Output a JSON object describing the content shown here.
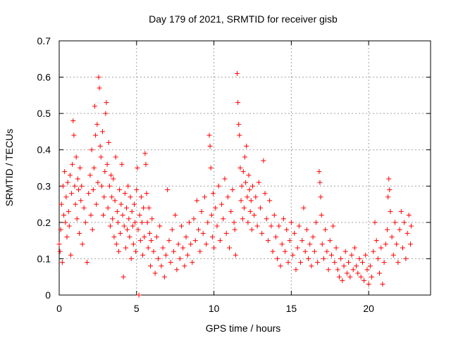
{
  "chart_data": {
    "type": "scatter",
    "title": "Day 179 of 2021, SRMTID for receiver gisb",
    "xlabel": "GPS time / hours",
    "ylabel": "SRMTID / TECUs",
    "xlim": [
      0,
      24
    ],
    "ylim": [
      0,
      0.7
    ],
    "xticks": [
      0,
      5,
      10,
      15,
      20
    ],
    "xtick_labels": [
      "0",
      "5",
      "10",
      "15",
      "20"
    ],
    "yticks": [
      0,
      0.1,
      0.2,
      0.3,
      0.4,
      0.5,
      0.6,
      0.7
    ],
    "ytick_labels": [
      "0",
      "0.1",
      "0.2",
      "0.3",
      "0.4",
      "0.5",
      "0.6",
      "0.7"
    ],
    "grid": true,
    "marker": "+",
    "color": "#ff0000",
    "series": [
      {
        "name": "SRMTID",
        "points": [
          [
            0.0,
            0.14
          ],
          [
            0.05,
            0.12
          ],
          [
            0.1,
            0.18
          ],
          [
            0.15,
            0.25
          ],
          [
            0.2,
            0.09
          ],
          [
            0.25,
            0.3
          ],
          [
            0.3,
            0.22
          ],
          [
            0.35,
            0.34
          ],
          [
            0.4,
            0.2
          ],
          [
            0.45,
            0.27
          ],
          [
            0.5,
            0.16
          ],
          [
            0.55,
            0.31
          ],
          [
            0.6,
            0.23
          ],
          [
            0.65,
            0.19
          ],
          [
            0.7,
            0.33
          ],
          [
            0.75,
            0.11
          ],
          [
            0.8,
            0.28
          ],
          [
            0.85,
            0.36
          ],
          [
            0.9,
            0.48
          ],
          [
            0.95,
            0.44
          ],
          [
            1.0,
            0.3
          ],
          [
            1.05,
            0.25
          ],
          [
            1.1,
            0.38
          ],
          [
            1.15,
            0.21
          ],
          [
            1.2,
            0.32
          ],
          [
            1.25,
            0.29
          ],
          [
            1.3,
            0.17
          ],
          [
            1.35,
            0.35
          ],
          [
            1.4,
            0.26
          ],
          [
            1.45,
            0.3
          ],
          [
            1.5,
            0.14
          ],
          [
            1.6,
            0.24
          ],
          [
            1.7,
            0.2
          ],
          [
            1.8,
            0.09
          ],
          [
            1.9,
            0.28
          ],
          [
            2.0,
            0.33
          ],
          [
            2.05,
            0.22
          ],
          [
            2.1,
            0.4
          ],
          [
            2.15,
            0.18
          ],
          [
            2.2,
            0.29
          ],
          [
            2.25,
            0.35
          ],
          [
            2.3,
            0.52
          ],
          [
            2.35,
            0.44
          ],
          [
            2.4,
            0.25
          ],
          [
            2.45,
            0.47
          ],
          [
            2.5,
            0.31
          ],
          [
            2.55,
            0.6
          ],
          [
            2.6,
            0.57
          ],
          [
            2.65,
            0.41
          ],
          [
            2.7,
            0.38
          ],
          [
            2.75,
            0.3
          ],
          [
            2.8,
            0.45
          ],
          [
            2.85,
            0.22
          ],
          [
            2.9,
            0.27
          ],
          [
            2.95,
            0.34
          ],
          [
            3.0,
            0.5
          ],
          [
            3.05,
            0.53
          ],
          [
            3.1,
            0.36
          ],
          [
            3.15,
            0.24
          ],
          [
            3.2,
            0.42
          ],
          [
            3.25,
            0.3
          ],
          [
            3.3,
            0.19
          ],
          [
            3.35,
            0.33
          ],
          [
            3.4,
            0.27
          ],
          [
            3.45,
            0.21
          ],
          [
            3.5,
            0.32
          ],
          [
            3.55,
            0.16
          ],
          [
            3.6,
            0.26
          ],
          [
            3.65,
            0.38
          ],
          [
            3.7,
            0.14
          ],
          [
            3.75,
            0.23
          ],
          [
            3.8,
            0.2
          ],
          [
            3.85,
            0.12
          ],
          [
            3.9,
            0.29
          ],
          [
            3.95,
            0.17
          ],
          [
            4.0,
            0.25
          ],
          [
            4.05,
            0.36
          ],
          [
            4.1,
            0.22
          ],
          [
            4.15,
            0.05
          ],
          [
            4.2,
            0.19
          ],
          [
            4.25,
            0.28
          ],
          [
            4.3,
            0.13
          ],
          [
            4.35,
            0.24
          ],
          [
            4.4,
            0.18
          ],
          [
            4.45,
            0.3
          ],
          [
            4.5,
            0.21
          ],
          [
            4.55,
            0.16
          ],
          [
            4.6,
            0.27
          ],
          [
            4.65,
            0.1
          ],
          [
            4.7,
            0.23
          ],
          [
            4.75,
            0.19
          ],
          [
            4.8,
            0.14
          ],
          [
            4.85,
            0.25
          ],
          [
            4.9,
            0.2
          ],
          [
            4.95,
            0.12
          ],
          [
            5.0,
            0.29
          ],
          [
            5.05,
            0.35
          ],
          [
            5.1,
            0.18
          ],
          [
            5.15,
            0.0
          ],
          [
            5.2,
            0.22
          ],
          [
            5.25,
            0.15
          ],
          [
            5.3,
            0.27
          ],
          [
            5.35,
            0.2
          ],
          [
            5.4,
            0.11
          ],
          [
            5.45,
            0.24
          ],
          [
            5.5,
            0.16
          ],
          [
            5.55,
            0.39
          ],
          [
            5.6,
            0.36
          ],
          [
            5.65,
            0.28
          ],
          [
            5.7,
            0.2
          ],
          [
            5.75,
            0.13
          ],
          [
            5.8,
            0.24
          ],
          [
            5.85,
            0.17
          ],
          [
            5.9,
            0.08
          ],
          [
            5.95,
            0.15
          ],
          [
            6.0,
            0.21
          ],
          [
            6.1,
            0.12
          ],
          [
            6.2,
            0.06
          ],
          [
            6.3,
            0.16
          ],
          [
            6.4,
            0.1
          ],
          [
            6.5,
            0.19
          ],
          [
            6.6,
            0.08
          ],
          [
            6.7,
            0.13
          ],
          [
            6.8,
            0.05
          ],
          [
            6.9,
            0.11
          ],
          [
            7.0,
            0.29
          ],
          [
            7.1,
            0.15
          ],
          [
            7.2,
            0.09
          ],
          [
            7.3,
            0.18
          ],
          [
            7.4,
            0.12
          ],
          [
            7.5,
            0.22
          ],
          [
            7.6,
            0.07
          ],
          [
            7.7,
            0.14
          ],
          [
            7.8,
            0.1
          ],
          [
            7.9,
            0.19
          ],
          [
            8.0,
            0.13
          ],
          [
            8.1,
            0.08
          ],
          [
            8.2,
            0.16
          ],
          [
            8.3,
            0.11
          ],
          [
            8.4,
            0.2
          ],
          [
            8.5,
            0.14
          ],
          [
            8.6,
            0.09
          ],
          [
            8.7,
            0.21
          ],
          [
            8.8,
            0.15
          ],
          [
            8.9,
            0.26
          ],
          [
            9.0,
            0.18
          ],
          [
            9.1,
            0.12
          ],
          [
            9.2,
            0.23
          ],
          [
            9.3,
            0.17
          ],
          [
            9.4,
            0.27
          ],
          [
            9.5,
            0.14
          ],
          [
            9.6,
            0.2
          ],
          [
            9.7,
            0.44
          ],
          [
            9.75,
            0.41
          ],
          [
            9.8,
            0.35
          ],
          [
            9.85,
            0.22
          ],
          [
            9.9,
            0.16
          ],
          [
            9.95,
            0.28
          ],
          [
            10.0,
            0.13
          ],
          [
            10.1,
            0.24
          ],
          [
            10.2,
            0.19
          ],
          [
            10.3,
            0.3
          ],
          [
            10.4,
            0.15
          ],
          [
            10.5,
            0.25
          ],
          [
            10.6,
            0.21
          ],
          [
            10.7,
            0.32
          ],
          [
            10.8,
            0.17
          ],
          [
            10.9,
            0.27
          ],
          [
            11.0,
            0.13
          ],
          [
            11.1,
            0.23
          ],
          [
            11.2,
            0.29
          ],
          [
            11.3,
            0.2
          ],
          [
            11.35,
            0.18
          ],
          [
            11.4,
            0.11
          ],
          [
            11.5,
            0.61
          ],
          [
            11.55,
            0.53
          ],
          [
            11.6,
            0.47
          ],
          [
            11.65,
            0.44
          ],
          [
            11.7,
            0.35
          ],
          [
            11.75,
            0.26
          ],
          [
            11.8,
            0.3
          ],
          [
            11.85,
            0.21
          ],
          [
            11.9,
            0.34
          ],
          [
            11.95,
            0.24
          ],
          [
            12.0,
            0.38
          ],
          [
            12.05,
            0.31
          ],
          [
            12.1,
            0.41
          ],
          [
            12.15,
            0.27
          ],
          [
            12.2,
            0.2
          ],
          [
            12.25,
            0.33
          ],
          [
            12.3,
            0.29
          ],
          [
            12.35,
            0.23
          ],
          [
            12.4,
            0.26
          ],
          [
            12.45,
            0.18
          ],
          [
            12.5,
            0.3
          ],
          [
            12.6,
            0.22
          ],
          [
            12.7,
            0.27
          ],
          [
            12.8,
            0.19
          ],
          [
            12.9,
            0.31
          ],
          [
            13.0,
            0.24
          ],
          [
            13.1,
            0.17
          ],
          [
            13.2,
            0.37
          ],
          [
            13.3,
            0.28
          ],
          [
            13.4,
            0.21
          ],
          [
            13.5,
            0.15
          ],
          [
            13.6,
            0.26
          ],
          [
            13.7,
            0.19
          ],
          [
            13.8,
            0.12
          ],
          [
            13.9,
            0.22
          ],
          [
            14.0,
            0.16
          ],
          [
            14.1,
            0.1
          ],
          [
            14.2,
            0.19
          ],
          [
            14.3,
            0.08
          ],
          [
            14.4,
            0.14
          ],
          [
            14.5,
            0.21
          ],
          [
            14.6,
            0.12
          ],
          [
            14.7,
            0.18
          ],
          [
            14.8,
            0.09
          ],
          [
            14.9,
            0.15
          ],
          [
            15.0,
            0.2
          ],
          [
            15.1,
            0.11
          ],
          [
            15.2,
            0.17
          ],
          [
            15.3,
            0.07
          ],
          [
            15.4,
            0.13
          ],
          [
            15.5,
            0.19
          ],
          [
            15.6,
            0.09
          ],
          [
            15.7,
            0.15
          ],
          [
            15.8,
            0.24
          ],
          [
            15.9,
            0.12
          ],
          [
            16.0,
            0.18
          ],
          [
            16.1,
            0.1
          ],
          [
            16.2,
            0.14
          ],
          [
            16.3,
            0.08
          ],
          [
            16.4,
            0.16
          ],
          [
            16.5,
            0.12
          ],
          [
            16.6,
            0.2
          ],
          [
            16.7,
            0.09
          ],
          [
            16.8,
            0.34
          ],
          [
            16.85,
            0.31
          ],
          [
            16.9,
            0.27
          ],
          [
            16.95,
            0.22
          ],
          [
            17.0,
            0.14
          ],
          [
            17.1,
            0.1
          ],
          [
            17.2,
            0.18
          ],
          [
            17.3,
            0.12
          ],
          [
            17.4,
            0.07
          ],
          [
            17.5,
            0.15
          ],
          [
            17.6,
            0.11
          ],
          [
            17.7,
            0.19
          ],
          [
            17.8,
            0.09
          ],
          [
            17.9,
            0.13
          ],
          [
            18.0,
            0.07
          ],
          [
            18.1,
            0.05
          ],
          [
            18.2,
            0.1
          ],
          [
            18.3,
            0.04
          ],
          [
            18.4,
            0.08
          ],
          [
            18.5,
            0.12
          ],
          [
            18.6,
            0.06
          ],
          [
            18.7,
            0.09
          ],
          [
            18.8,
            0.05
          ],
          [
            18.9,
            0.11
          ],
          [
            19.0,
            0.07
          ],
          [
            19.1,
            0.13
          ],
          [
            19.2,
            0.08
          ],
          [
            19.3,
            0.06
          ],
          [
            19.4,
            0.1
          ],
          [
            19.5,
            0.05
          ],
          [
            19.6,
            0.09
          ],
          [
            19.7,
            0.04
          ],
          [
            19.8,
            0.11
          ],
          [
            19.9,
            0.07
          ],
          [
            20.0,
            0.03
          ],
          [
            20.1,
            0.08
          ],
          [
            20.2,
            0.05
          ],
          [
            20.3,
            0.12
          ],
          [
            20.4,
            0.2
          ],
          [
            20.5,
            0.15
          ],
          [
            20.6,
            0.1
          ],
          [
            20.7,
            0.06
          ],
          [
            20.8,
            0.13
          ],
          [
            20.9,
            0.03
          ],
          [
            21.0,
            0.09
          ],
          [
            21.1,
            0.14
          ],
          [
            21.2,
            0.18
          ],
          [
            21.25,
            0.27
          ],
          [
            21.3,
            0.32
          ],
          [
            21.35,
            0.29
          ],
          [
            21.4,
            0.23
          ],
          [
            21.5,
            0.16
          ],
          [
            21.6,
            0.11
          ],
          [
            21.7,
            0.2
          ],
          [
            21.8,
            0.14
          ],
          [
            21.9,
            0.09
          ],
          [
            22.0,
            0.18
          ],
          [
            22.1,
            0.23
          ],
          [
            22.2,
            0.13
          ],
          [
            22.3,
            0.2
          ],
          [
            22.4,
            0.1
          ],
          [
            22.5,
            0.17
          ],
          [
            22.6,
            0.22
          ],
          [
            22.7,
            0.14
          ],
          [
            22.75,
            0.19
          ]
        ]
      }
    ]
  }
}
